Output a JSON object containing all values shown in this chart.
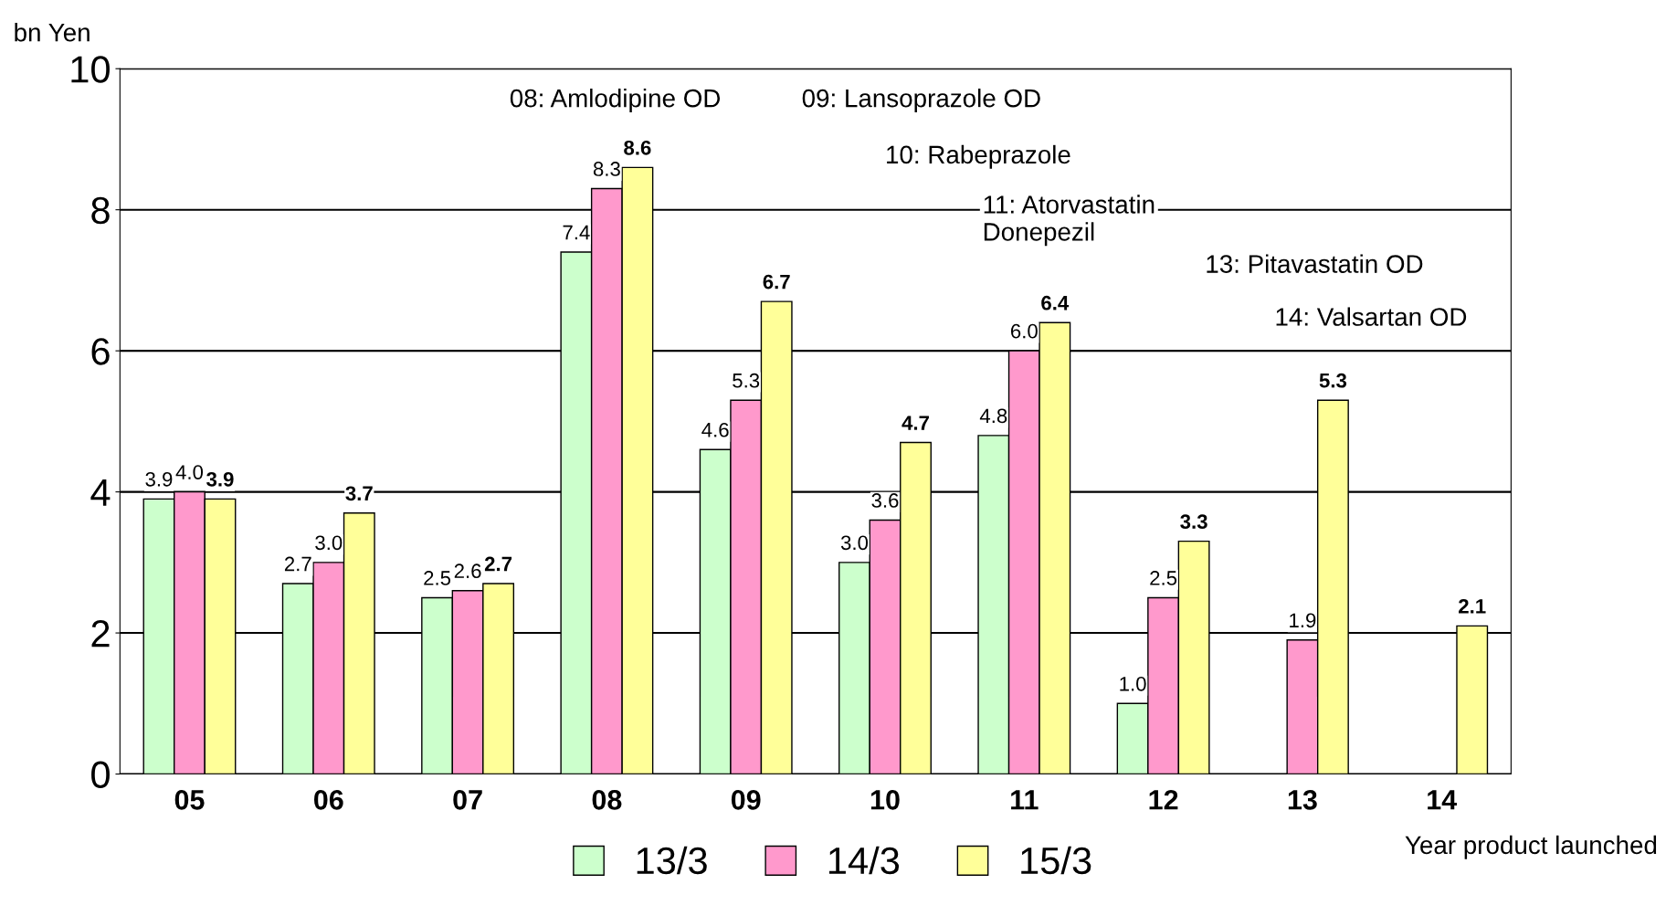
{
  "chart_data": {
    "type": "bar",
    "ylabel": "bn Yen",
    "xlabel": "Year product launched",
    "categories": [
      "05",
      "06",
      "07",
      "08",
      "09",
      "10",
      "11",
      "12",
      "13",
      "14"
    ],
    "series": [
      {
        "name": "13/3",
        "color": "#ccffcc",
        "values": [
          3.9,
          2.7,
          2.5,
          7.4,
          4.6,
          3.0,
          4.8,
          1.0,
          null,
          null
        ],
        "value_labels": [
          "3.9",
          "2.7",
          "2.5",
          "7.4",
          "4.6",
          "3.0",
          "4.8",
          "1.0",
          null,
          null
        ]
      },
      {
        "name": "14/3",
        "color": "#ff99cc",
        "values": [
          4.0,
          3.0,
          2.6,
          8.3,
          5.3,
          3.6,
          6.0,
          2.5,
          1.9,
          null
        ],
        "value_labels": [
          "4.0",
          "3.0",
          "2.6",
          "8.3",
          "5.3",
          "3.6",
          "6.0",
          "2.5",
          "1.9",
          null
        ]
      },
      {
        "name": "15/3",
        "color": "#ffff99",
        "values": [
          3.9,
          3.7,
          2.7,
          8.6,
          6.7,
          4.7,
          6.4,
          3.3,
          5.3,
          2.1
        ],
        "value_labels": [
          "3.9",
          "3.7",
          "2.7",
          "8.6",
          "6.7",
          "4.7",
          "6.4",
          "3.3",
          "5.3",
          "2.1"
        ]
      }
    ],
    "ylim": [
      0,
      10
    ],
    "yticks": [
      0,
      2,
      4,
      6,
      8,
      10
    ],
    "grid": "y",
    "legend": "bottom",
    "annotations": [
      "08: Amlodipine OD",
      "09: Lansoprazole OD",
      "10: Rabeprazole",
      "11: Atorvastatin\nDonepezil",
      "13: Pitavastatin OD",
      "14: Valsartan OD"
    ]
  }
}
